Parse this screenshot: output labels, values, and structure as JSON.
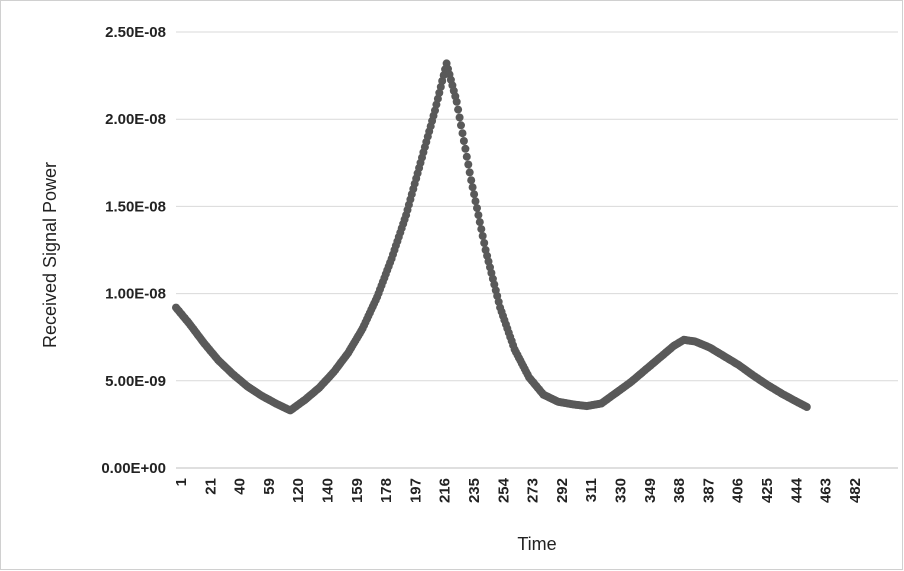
{
  "chart_data": {
    "type": "scatter",
    "title": "",
    "xlabel": "Time",
    "ylabel": "Received Signal Power",
    "ylim": [
      0,
      2.5e-08
    ],
    "xlim": [
      1,
      500
    ],
    "y_ticks": [
      {
        "value": 0,
        "label": "0.00E+00"
      },
      {
        "value": 5e-09,
        "label": "5.00E-09"
      },
      {
        "value": 1e-08,
        "label": "1.00E-08"
      },
      {
        "value": 1.5e-08,
        "label": "1.50E-08"
      },
      {
        "value": 2e-08,
        "label": "2.00E-08"
      },
      {
        "value": 2.5e-08,
        "label": "2.50E-08"
      }
    ],
    "x_tick_labels": [
      "1",
      "21",
      "40",
      "59",
      "120",
      "140",
      "159",
      "178",
      "197",
      "216",
      "235",
      "254",
      "273",
      "292",
      "311",
      "330",
      "349",
      "368",
      "387",
      "406",
      "425",
      "444",
      "463",
      "482"
    ],
    "grid": "horizontal",
    "legend": "none",
    "marker_color": "#595959",
    "series": [
      {
        "points": [
          [
            1,
            9.2e-09
          ],
          [
            10,
            8.3e-09
          ],
          [
            20,
            7.2e-09
          ],
          [
            30,
            6.2e-09
          ],
          [
            40,
            5.4e-09
          ],
          [
            50,
            4.7e-09
          ],
          [
            60,
            4.15e-09
          ],
          [
            70,
            3.7e-09
          ],
          [
            80,
            3.3e-09
          ],
          [
            90,
            3.9e-09
          ],
          [
            100,
            4.6e-09
          ],
          [
            110,
            5.5e-09
          ],
          [
            120,
            6.6e-09
          ],
          [
            130,
            8e-09
          ],
          [
            140,
            9.8e-09
          ],
          [
            150,
            1.2e-08
          ],
          [
            160,
            1.45e-08
          ],
          [
            170,
            1.75e-08
          ],
          [
            180,
            2.05e-08
          ],
          [
            188,
            2.32e-08
          ],
          [
            195,
            2.1e-08
          ],
          [
            205,
            1.65e-08
          ],
          [
            215,
            1.25e-08
          ],
          [
            225,
            9.2e-09
          ],
          [
            235,
            6.8e-09
          ],
          [
            245,
            5.2e-09
          ],
          [
            255,
            4.2e-09
          ],
          [
            265,
            3.8e-09
          ],
          [
            275,
            3.65e-09
          ],
          [
            285,
            3.55e-09
          ],
          [
            295,
            3.7e-09
          ],
          [
            305,
            4.3e-09
          ],
          [
            315,
            4.9e-09
          ],
          [
            325,
            5.6e-09
          ],
          [
            335,
            6.3e-09
          ],
          [
            345,
            7e-09
          ],
          [
            352,
            7.35e-09
          ],
          [
            360,
            7.25e-09
          ],
          [
            370,
            6.9e-09
          ],
          [
            380,
            6.4e-09
          ],
          [
            390,
            5.9e-09
          ],
          [
            400,
            5.3e-09
          ],
          [
            410,
            4.75e-09
          ],
          [
            420,
            4.25e-09
          ],
          [
            430,
            3.8e-09
          ],
          [
            437,
            3.5e-09
          ]
        ]
      }
    ]
  }
}
